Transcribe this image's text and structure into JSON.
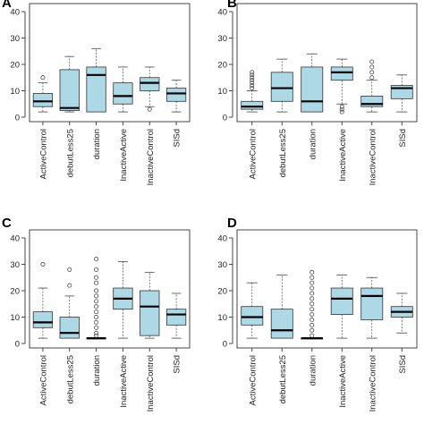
{
  "colors": {
    "box_fill": "#add8e6",
    "stroke": "#333333",
    "median": "#000000"
  },
  "chart_data": [
    {
      "type": "box",
      "panel_label": "A",
      "ylim": [
        0,
        40
      ],
      "yticks": [
        "0",
        "10",
        "20",
        "30",
        "40"
      ],
      "categories": [
        "ActiveControl",
        "debutLess25",
        "duration",
        "InactiveActive",
        "InactiveControl",
        "SISd"
      ],
      "boxes": [
        {
          "min": 2,
          "q1": 4,
          "median": 6,
          "q3": 9,
          "max": 13,
          "outliers": [
            15
          ]
        },
        {
          "min": 2,
          "q1": 2.5,
          "median": 3.5,
          "q3": 18,
          "max": 23,
          "outliers": []
        },
        {
          "min": 2,
          "q1": 2,
          "median": 16,
          "q3": 19,
          "max": 26,
          "outliers": []
        },
        {
          "min": 2,
          "q1": 5,
          "median": 8,
          "q3": 13,
          "max": 19,
          "outliers": []
        },
        {
          "min": 4,
          "q1": 10,
          "median": 13,
          "q3": 15,
          "max": 19,
          "outliers": [
            3
          ]
        },
        {
          "min": 2,
          "q1": 6,
          "median": 9,
          "q3": 11,
          "max": 14,
          "outliers": []
        }
      ]
    },
    {
      "type": "box",
      "panel_label": "B",
      "ylim": [
        0,
        40
      ],
      "yticks": [
        "0",
        "10",
        "20",
        "30",
        "40"
      ],
      "categories": [
        "ActiveControl",
        "debutLess25",
        "duration",
        "InactiveActive",
        "InactiveControl",
        "SISd"
      ],
      "boxes": [
        {
          "min": 2,
          "q1": 3,
          "median": 4,
          "q3": 6,
          "max": 10,
          "outliers": [
            11,
            12,
            13,
            14,
            15,
            16,
            17
          ]
        },
        {
          "min": 2,
          "q1": 6,
          "median": 11,
          "q3": 17,
          "max": 22,
          "outliers": []
        },
        {
          "min": 2,
          "q1": 2,
          "median": 6,
          "q3": 19,
          "max": 24,
          "outliers": []
        },
        {
          "min": 5,
          "q1": 14,
          "median": 17,
          "q3": 19,
          "max": 22,
          "outliers": [
            2,
            3,
            4
          ]
        },
        {
          "min": 2,
          "q1": 4,
          "median": 5,
          "q3": 8,
          "max": 14,
          "outliers": [
            15,
            17,
            19,
            21
          ]
        },
        {
          "min": 2,
          "q1": 7,
          "median": 11,
          "q3": 12,
          "max": 16,
          "outliers": []
        }
      ]
    },
    {
      "type": "box",
      "panel_label": "C",
      "ylim": [
        0,
        40
      ],
      "yticks": [
        "0",
        "10",
        "20",
        "30",
        "40"
      ],
      "categories": [
        "ActiveControl",
        "debutLess25",
        "duration",
        "InactiveActive",
        "InactiveControl",
        "SISd"
      ],
      "boxes": [
        {
          "min": 2,
          "q1": 6,
          "median": 8,
          "q3": 12,
          "max": 21,
          "outliers": [
            30
          ]
        },
        {
          "min": 2,
          "q1": 2,
          "median": 4,
          "q3": 10,
          "max": 18,
          "outliers": [
            22,
            28
          ]
        },
        {
          "min": 2,
          "q1": 2,
          "median": 2,
          "q3": 2,
          "max": 2,
          "outliers": [
            3,
            4,
            6,
            8,
            10,
            12,
            14,
            16,
            18,
            20,
            23,
            25,
            28,
            32
          ]
        },
        {
          "min": 2,
          "q1": 13,
          "median": 17,
          "q3": 21,
          "max": 31,
          "outliers": []
        },
        {
          "min": 2,
          "q1": 3,
          "median": 14,
          "q3": 20,
          "max": 27,
          "outliers": []
        },
        {
          "min": 2,
          "q1": 7,
          "median": 11,
          "q3": 13,
          "max": 19,
          "outliers": []
        }
      ]
    },
    {
      "type": "box",
      "panel_label": "D",
      "ylim": [
        0,
        40
      ],
      "yticks": [
        "0",
        "10",
        "20",
        "30",
        "40"
      ],
      "categories": [
        "ActiveControl",
        "debutLess25",
        "duration",
        "InactiveActive",
        "InactiveControl",
        "SISd"
      ],
      "boxes": [
        {
          "min": 2,
          "q1": 7,
          "median": 10,
          "q3": 14,
          "max": 23,
          "outliers": []
        },
        {
          "min": 2,
          "q1": 2,
          "median": 5,
          "q3": 13,
          "max": 26,
          "outliers": []
        },
        {
          "min": 2,
          "q1": 2,
          "median": 2,
          "q3": 2,
          "max": 2,
          "outliers": [
            3,
            5,
            7,
            9,
            11,
            13,
            15,
            17,
            19,
            21,
            23,
            25,
            27
          ]
        },
        {
          "min": 2,
          "q1": 11,
          "median": 17,
          "q3": 21,
          "max": 26,
          "outliers": []
        },
        {
          "min": 2,
          "q1": 9,
          "median": 18,
          "q3": 21,
          "max": 25,
          "outliers": []
        },
        {
          "min": 4,
          "q1": 10,
          "median": 12,
          "q3": 14,
          "max": 19,
          "outliers": []
        }
      ]
    }
  ]
}
